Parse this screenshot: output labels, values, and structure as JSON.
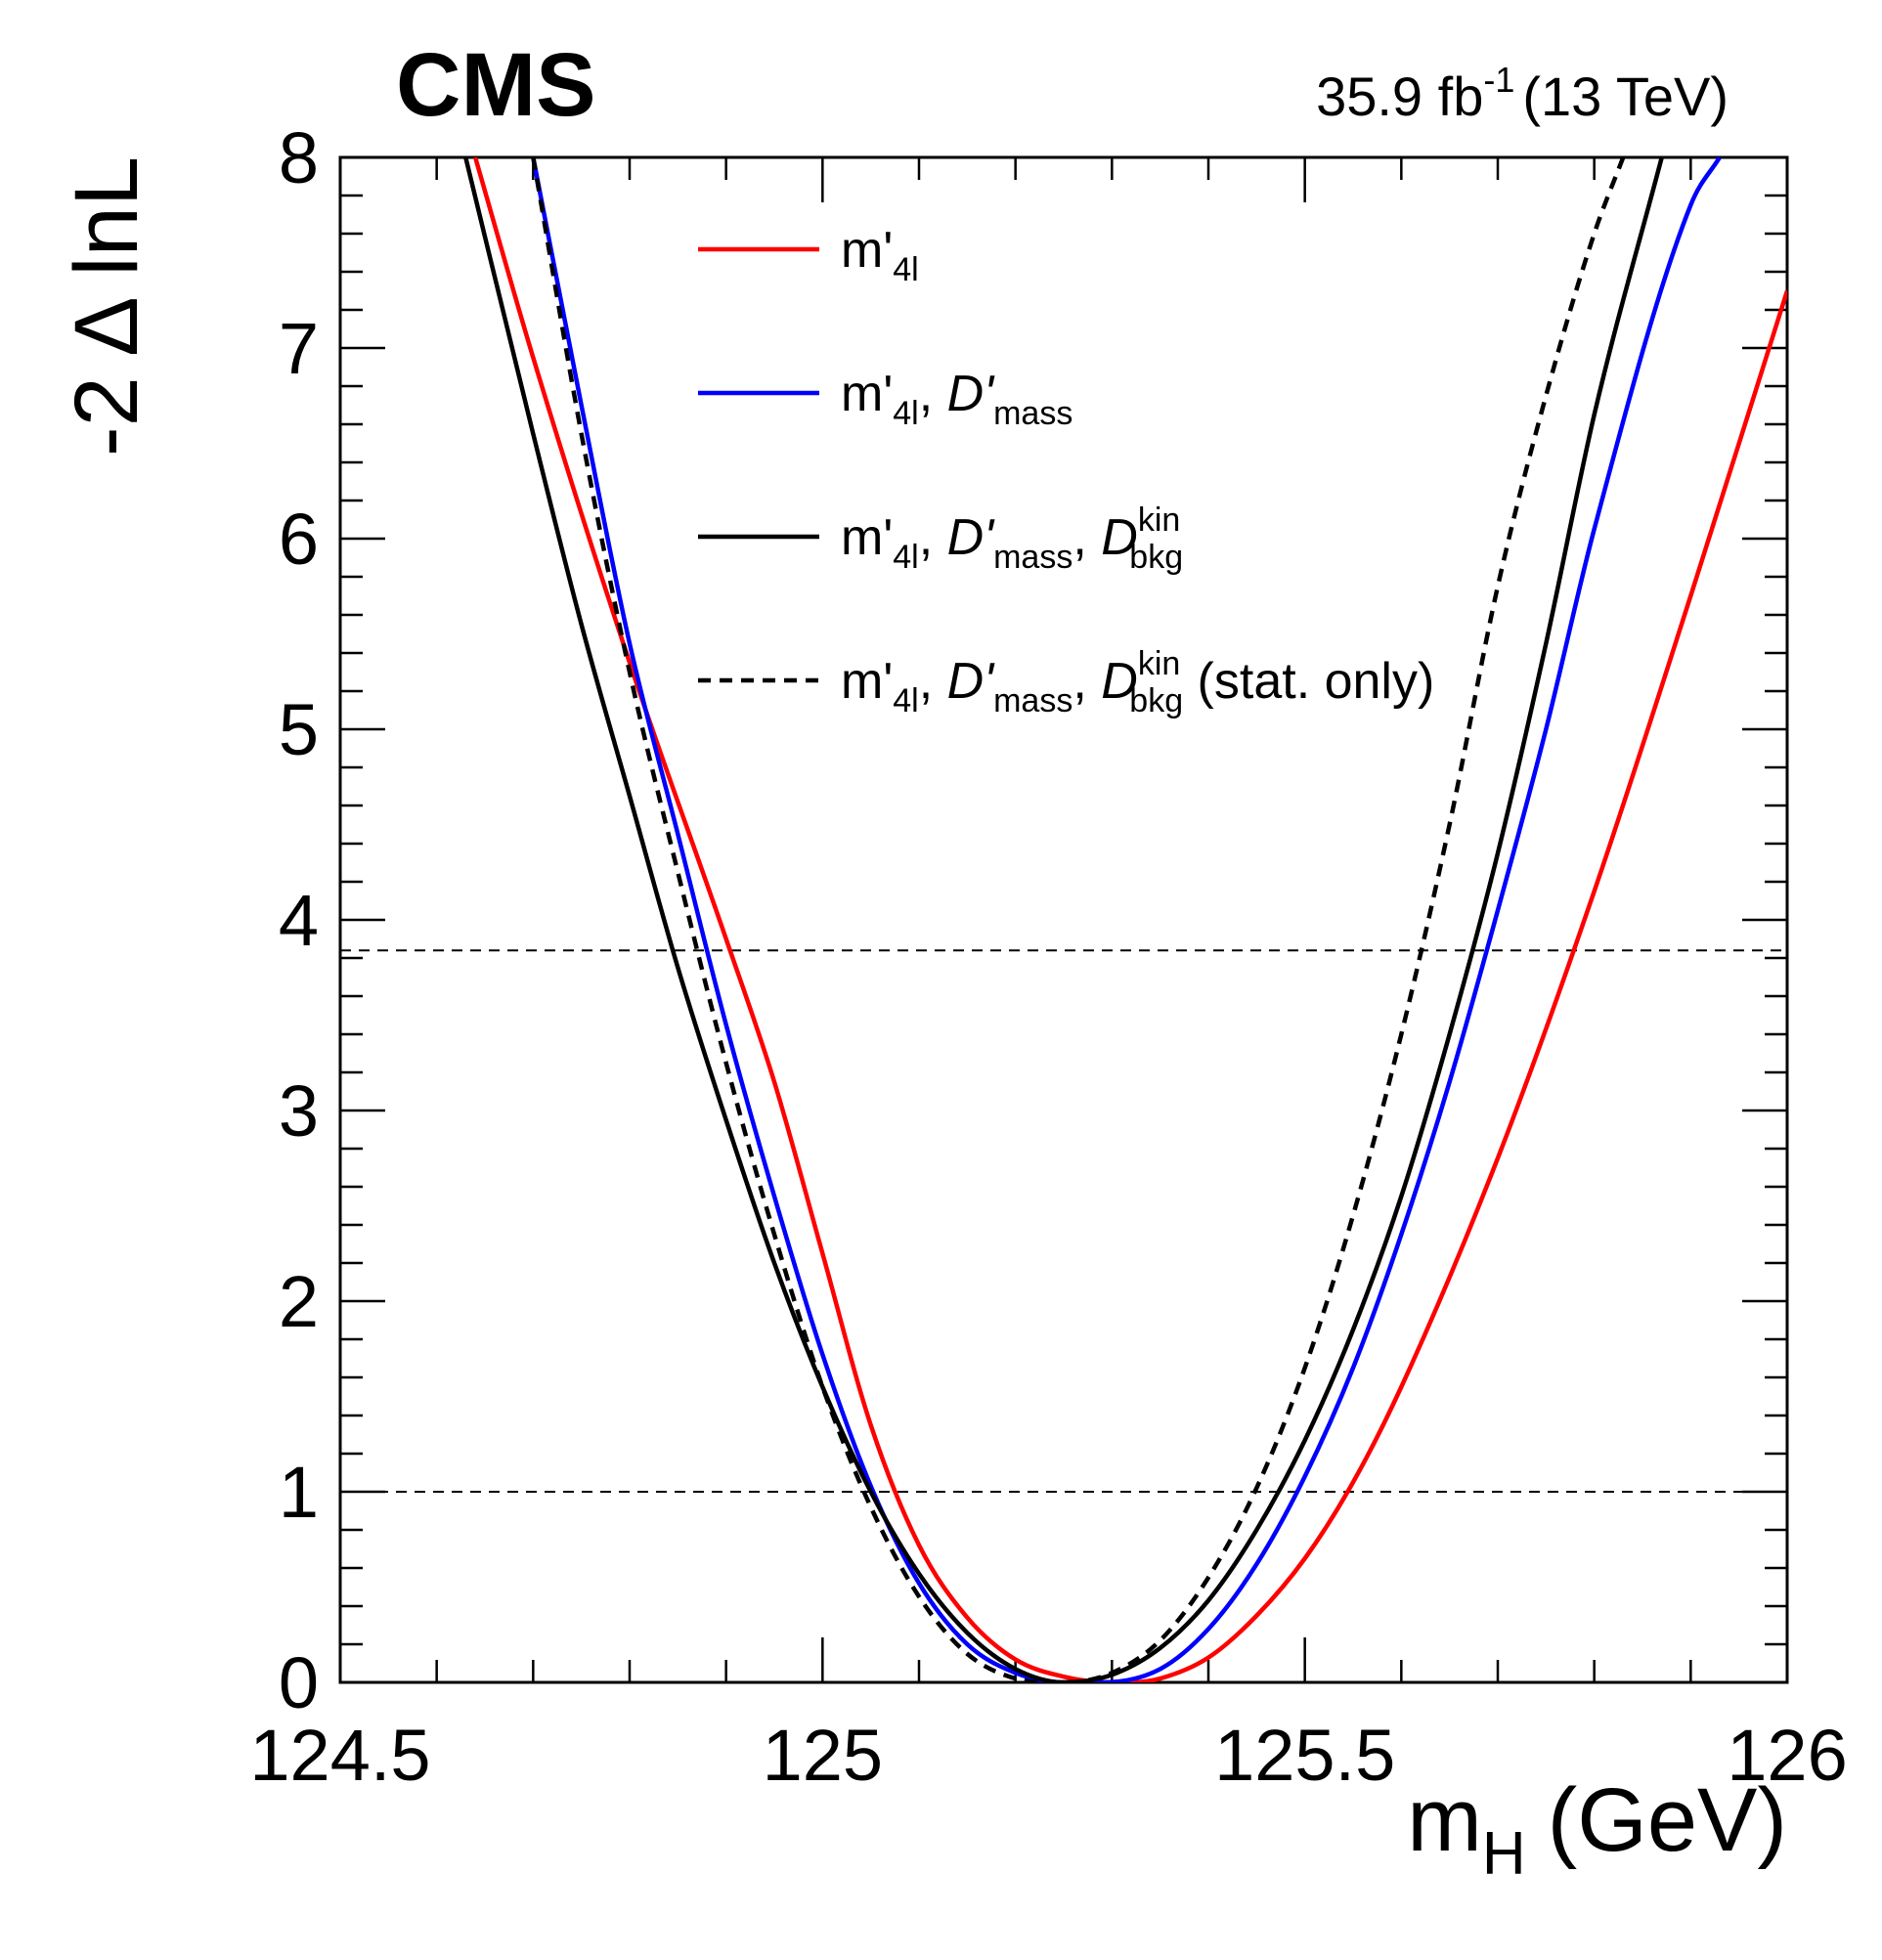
{
  "experiment_label": "CMS",
  "luminosity_label": {
    "value": "35.9 fb",
    "exponent": "-1",
    "energy": "(13 TeV)"
  },
  "chart_data": {
    "type": "line",
    "title": "",
    "xlabel": "m",
    "xlabel_sub": "H",
    "xlabel_unit": "(GeV)",
    "ylabel": "-2 Δ lnL",
    "xlim": [
      124.5,
      126.0
    ],
    "ylim": [
      0,
      8
    ],
    "x_ticks": [
      {
        "value": 124.5,
        "label": "124.5"
      },
      {
        "value": 125.0,
        "label": "125"
      },
      {
        "value": 125.5,
        "label": "125.5"
      },
      {
        "value": 126.0,
        "label": "126"
      }
    ],
    "y_ticks": [
      {
        "value": 0,
        "label": "0"
      },
      {
        "value": 1,
        "label": "1"
      },
      {
        "value": 2,
        "label": "2"
      },
      {
        "value": 3,
        "label": "3"
      },
      {
        "value": 4,
        "label": "4"
      },
      {
        "value": 5,
        "label": "5"
      },
      {
        "value": 6,
        "label": "6"
      },
      {
        "value": 7,
        "label": "7"
      },
      {
        "value": 8,
        "label": "8"
      }
    ],
    "reference_lines": [
      {
        "y": 1.0,
        "style": "dashed"
      },
      {
        "y": 3.84,
        "style": "dashed"
      }
    ],
    "series": [
      {
        "name": "m'4l",
        "color": "#ff0000",
        "style": "solid",
        "minimum": 125.32,
        "x": [
          124.64,
          124.7,
          124.8,
          124.9,
          124.95,
          125.0,
          125.05,
          125.1,
          125.15,
          125.2,
          125.25,
          125.3,
          125.32,
          125.35,
          125.4,
          125.45,
          125.5,
          125.55,
          125.6,
          125.7,
          125.8,
          125.9,
          126.0
        ],
        "y": [
          8.0,
          6.95,
          5.35,
          3.9,
          3.15,
          2.25,
          1.35,
          0.72,
          0.34,
          0.12,
          0.03,
          0.0,
          0.0,
          0.02,
          0.13,
          0.35,
          0.65,
          1.05,
          1.55,
          2.75,
          4.15,
          5.7,
          7.3
        ]
      },
      {
        "name": "m'4l, D'mass",
        "color": "#0000ff",
        "style": "solid",
        "minimum": 125.29,
        "x": [
          124.7,
          124.75,
          124.8,
          124.85,
          124.9,
          124.95,
          125.0,
          125.05,
          125.1,
          125.15,
          125.2,
          125.25,
          125.29,
          125.35,
          125.4,
          125.45,
          125.5,
          125.55,
          125.6,
          125.65,
          125.7,
          125.75,
          125.8,
          125.9,
          125.93
        ],
        "y": [
          8.0,
          6.7,
          5.45,
          4.45,
          3.45,
          2.55,
          1.72,
          1.03,
          0.52,
          0.2,
          0.05,
          0.0,
          0.0,
          0.07,
          0.28,
          0.62,
          1.08,
          1.65,
          2.35,
          3.15,
          4.05,
          5.0,
          6.05,
          7.75,
          8.0
        ]
      },
      {
        "name": "m'4l, D'mass, Dkin bkg",
        "color": "#000000",
        "style": "solid",
        "minimum": 125.25,
        "x": [
          124.63,
          124.7,
          124.75,
          124.8,
          124.85,
          124.9,
          124.95,
          125.0,
          125.05,
          125.1,
          125.15,
          125.2,
          125.25,
          125.3,
          125.35,
          125.4,
          125.45,
          125.5,
          125.55,
          125.6,
          125.65,
          125.7,
          125.75,
          125.8,
          125.87
        ],
        "y": [
          8.0,
          6.55,
          5.55,
          4.65,
          3.75,
          2.95,
          2.2,
          1.55,
          1.0,
          0.57,
          0.26,
          0.07,
          0.0,
          0.04,
          0.18,
          0.43,
          0.8,
          1.27,
          1.85,
          2.55,
          3.4,
          4.35,
          5.45,
          6.65,
          8.0
        ]
      },
      {
        "name": "m'4l, D'mass, Dkin bkg (stat. only)",
        "color": "#000000",
        "style": "dashed",
        "minimum": 125.25,
        "x": [
          124.7,
          124.75,
          124.8,
          124.85,
          124.9,
          124.95,
          125.0,
          125.05,
          125.1,
          125.15,
          125.2,
          125.25,
          125.3,
          125.35,
          125.4,
          125.45,
          125.5,
          125.55,
          125.6,
          125.65,
          125.7,
          125.75,
          125.8,
          125.83
        ],
        "y": [
          8.0,
          6.55,
          5.3,
          4.25,
          3.25,
          2.35,
          1.55,
          0.92,
          0.45,
          0.15,
          0.02,
          0.0,
          0.05,
          0.22,
          0.55,
          1.02,
          1.65,
          2.45,
          3.4,
          4.5,
          5.75,
          6.75,
          7.6,
          8.0
        ]
      }
    ],
    "legend": {
      "placement": "top-left-inside",
      "entries": [
        {
          "main": "m'",
          "sub": "4l",
          "rest": []
        },
        {
          "main": "m'",
          "sub": "4l",
          "rest": [
            {
              "text": ", "
            },
            {
              "text": "D'",
              "italic": true
            },
            {
              "sub": "mass"
            }
          ]
        },
        {
          "main": "m'",
          "sub": "4l",
          "rest": [
            {
              "text": ", "
            },
            {
              "text": "D'",
              "italic": true
            },
            {
              "sub": "mass"
            },
            {
              "text": ", "
            },
            {
              "text": "D",
              "italic": true
            },
            {
              "supsub": [
                "kin",
                "bkg"
              ]
            }
          ]
        },
        {
          "main": "m'",
          "sub": "4l",
          "rest": [
            {
              "text": ", "
            },
            {
              "text": "D'",
              "italic": true
            },
            {
              "sub": "mass"
            },
            {
              "text": ", "
            },
            {
              "text": "D",
              "italic": true
            },
            {
              "supsub": [
                "kin",
                "bkg"
              ]
            },
            {
              "text": " (stat. only)"
            }
          ]
        }
      ]
    }
  }
}
